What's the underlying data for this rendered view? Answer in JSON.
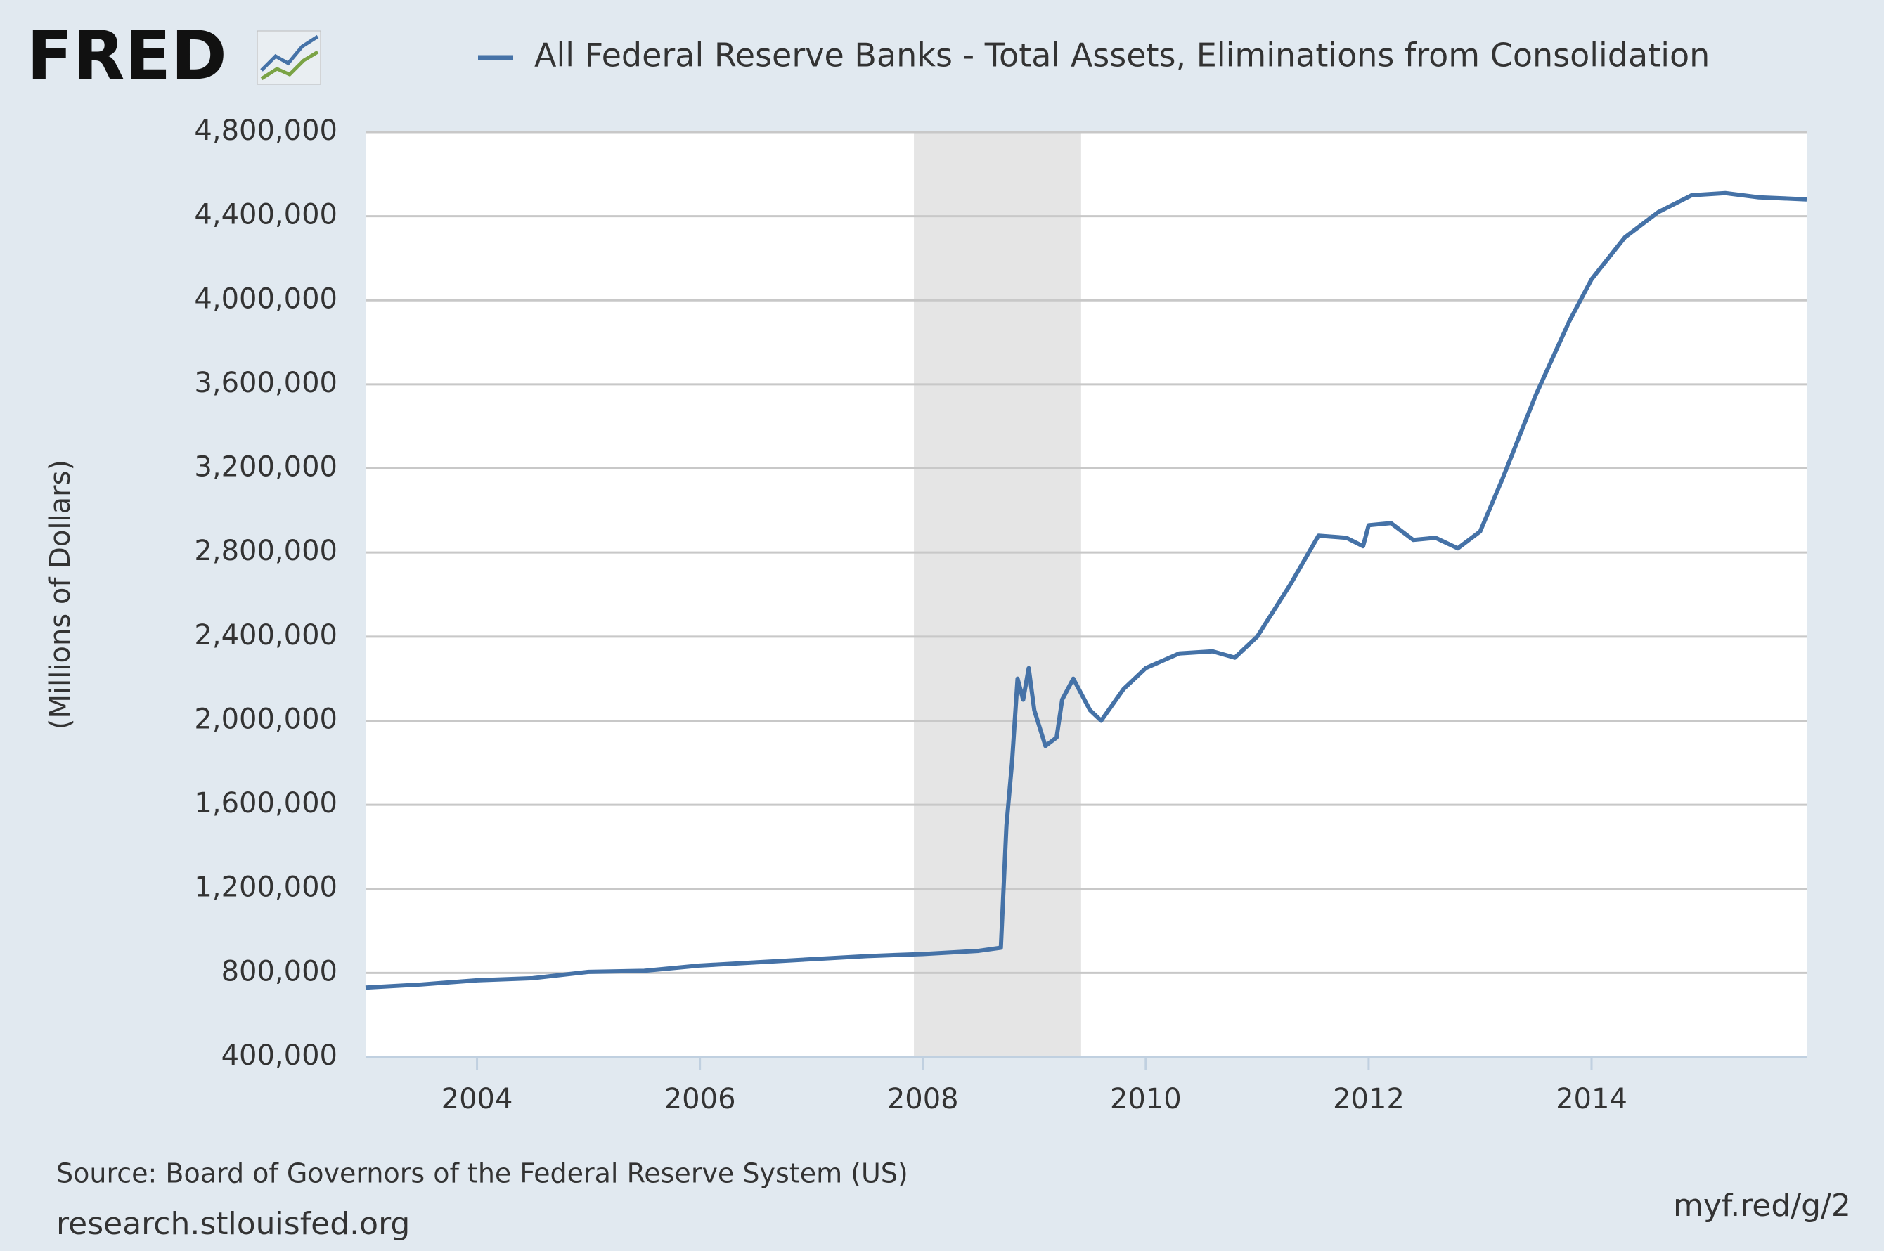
{
  "chart_data": {
    "type": "line",
    "logo": "FRED",
    "title": "All Federal Reserve Banks - Total Assets, Eliminations from Consolidation",
    "y_label": "(Millions of Dollars)",
    "source": "Source: Board of Governors of the Federal Reserve System (US)",
    "url": "research.stlouisfed.org",
    "short_url": "myf.red/g/2",
    "x": [
      2003.0,
      2003.5,
      2004.0,
      2004.5,
      2005.0,
      2005.5,
      2006.0,
      2006.5,
      2007.0,
      2007.5,
      2008.0,
      2008.5,
      2008.7,
      2008.75,
      2008.8,
      2008.85,
      2008.9,
      2008.95,
      2009.0,
      2009.1,
      2009.2,
      2009.25,
      2009.35,
      2009.5,
      2009.6,
      2009.8,
      2010.0,
      2010.3,
      2010.6,
      2010.8,
      2011.0,
      2011.3,
      2011.55,
      2011.8,
      2011.95,
      2012.0,
      2012.2,
      2012.4,
      2012.6,
      2012.8,
      2013.0,
      2013.2,
      2013.5,
      2013.8,
      2014.0,
      2014.3,
      2014.6,
      2014.9,
      2015.2,
      2015.5,
      2015.93
    ],
    "series": [
      {
        "name": "All Federal Reserve Banks - Total Assets, Eliminations from Consolidation",
        "color": "#4572a7",
        "values": [
          730000,
          745000,
          765000,
          775000,
          805000,
          810000,
          835000,
          850000,
          865000,
          880000,
          890000,
          905000,
          920000,
          1500000,
          1800000,
          2200000,
          2100000,
          2250000,
          2050000,
          1880000,
          1920000,
          2100000,
          2200000,
          2050000,
          2000000,
          2150000,
          2250000,
          2320000,
          2330000,
          2300000,
          2400000,
          2650000,
          2880000,
          2870000,
          2830000,
          2930000,
          2940000,
          2860000,
          2870000,
          2820000,
          2900000,
          3150000,
          3550000,
          3900000,
          4100000,
          4300000,
          4420000,
          4500000,
          4510000,
          4490000,
          4480000
        ]
      }
    ],
    "recessions": [
      [
        2007.92,
        2009.42
      ]
    ],
    "xlim": [
      2003.0,
      2015.93
    ],
    "xticks": [
      2004,
      2006,
      2008,
      2010,
      2012,
      2014
    ],
    "ylim": [
      400000,
      4800000
    ],
    "yticks": [
      {
        "value": 400000,
        "label": "400,000"
      },
      {
        "value": 800000,
        "label": "800,000"
      },
      {
        "value": 1200000,
        "label": "1,200,000"
      },
      {
        "value": 1600000,
        "label": "1,600,000"
      },
      {
        "value": 2000000,
        "label": "2,000,000"
      },
      {
        "value": 2400000,
        "label": "2,400,000"
      },
      {
        "value": 2800000,
        "label": "2,800,000"
      },
      {
        "value": 3200000,
        "label": "3,200,000"
      },
      {
        "value": 3600000,
        "label": "3,600,000"
      },
      {
        "value": 4000000,
        "label": "4,000,000"
      },
      {
        "value": 4400000,
        "label": "4,400,000"
      },
      {
        "value": 4800000,
        "label": "4,800,000"
      }
    ],
    "grid": true
  }
}
